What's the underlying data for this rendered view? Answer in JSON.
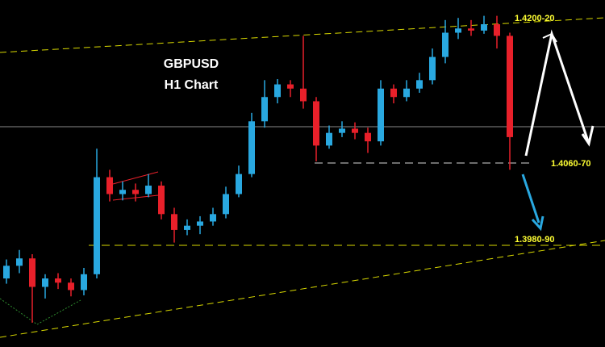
{
  "chart_data": {
    "type": "candlestick",
    "title": "GBPUSD",
    "subtitle": "H1 Chart",
    "annotations": [
      "1.4200-20",
      "1.4060-70",
      "1.3980-90"
    ],
    "up_color": "#29a8e0",
    "down_color": "#e8202a",
    "ylim": [
      1.3888,
      1.4217
    ],
    "open": [
      1.3953,
      1.3965,
      1.3972,
      1.3945,
      1.3953,
      1.3949,
      1.3942,
      1.3957,
      1.4049,
      1.4033,
      1.4037,
      1.4033,
      1.4041,
      1.4014,
      1.3999,
      1.4003,
      1.4007,
      1.4014,
      1.4033,
      1.4052,
      1.4102,
      1.4125,
      1.4137,
      1.4133,
      1.4121,
      1.4079,
      1.4091,
      1.4095,
      1.4091,
      1.4083,
      1.4133,
      1.4125,
      1.4133,
      1.4141,
      1.4163,
      1.4186,
      1.419,
      1.4188,
      1.4194,
      1.4183
    ],
    "high": [
      1.3971,
      1.398,
      1.3976,
      1.3957,
      1.3958,
      1.3953,
      1.3963,
      1.4076,
      1.4056,
      1.4045,
      1.4043,
      1.4052,
      1.4045,
      1.402,
      1.4009,
      1.4012,
      1.402,
      1.404,
      1.406,
      1.411,
      1.4141,
      1.4142,
      1.4141,
      1.4183,
      1.4125,
      1.4098,
      1.4102,
      1.4101,
      1.4096,
      1.4141,
      1.4137,
      1.4141,
      1.4148,
      1.4171,
      1.4198,
      1.42,
      1.4198,
      1.4202,
      1.4202,
      1.4186
    ],
    "low": [
      1.3948,
      1.3958,
      1.3911,
      1.3934,
      1.3943,
      1.3936,
      1.3937,
      1.3953,
      1.4026,
      1.4027,
      1.4026,
      1.403,
      1.4009,
      1.3987,
      1.3994,
      1.3995,
      1.4003,
      1.401,
      1.403,
      1.4049,
      1.4096,
      1.4119,
      1.4125,
      1.4114,
      1.4064,
      1.4076,
      1.4087,
      1.4085,
      1.4072,
      1.4079,
      1.4119,
      1.4121,
      1.4129,
      1.4137,
      1.4157,
      1.418,
      1.4183,
      1.4185,
      1.4171,
      1.4056
    ],
    "close": [
      1.3965,
      1.3972,
      1.3945,
      1.3953,
      1.3949,
      1.3942,
      1.3957,
      1.4049,
      1.4033,
      1.4037,
      1.4033,
      1.4041,
      1.4014,
      1.3999,
      1.4003,
      1.4007,
      1.4014,
      1.4033,
      1.4052,
      1.4102,
      1.4125,
      1.4137,
      1.4133,
      1.4121,
      1.4079,
      1.4091,
      1.4095,
      1.4091,
      1.4083,
      1.4133,
      1.4125,
      1.4133,
      1.4141,
      1.4163,
      1.4186,
      1.419,
      1.4188,
      1.4194,
      1.4183,
      1.4087
    ]
  }
}
